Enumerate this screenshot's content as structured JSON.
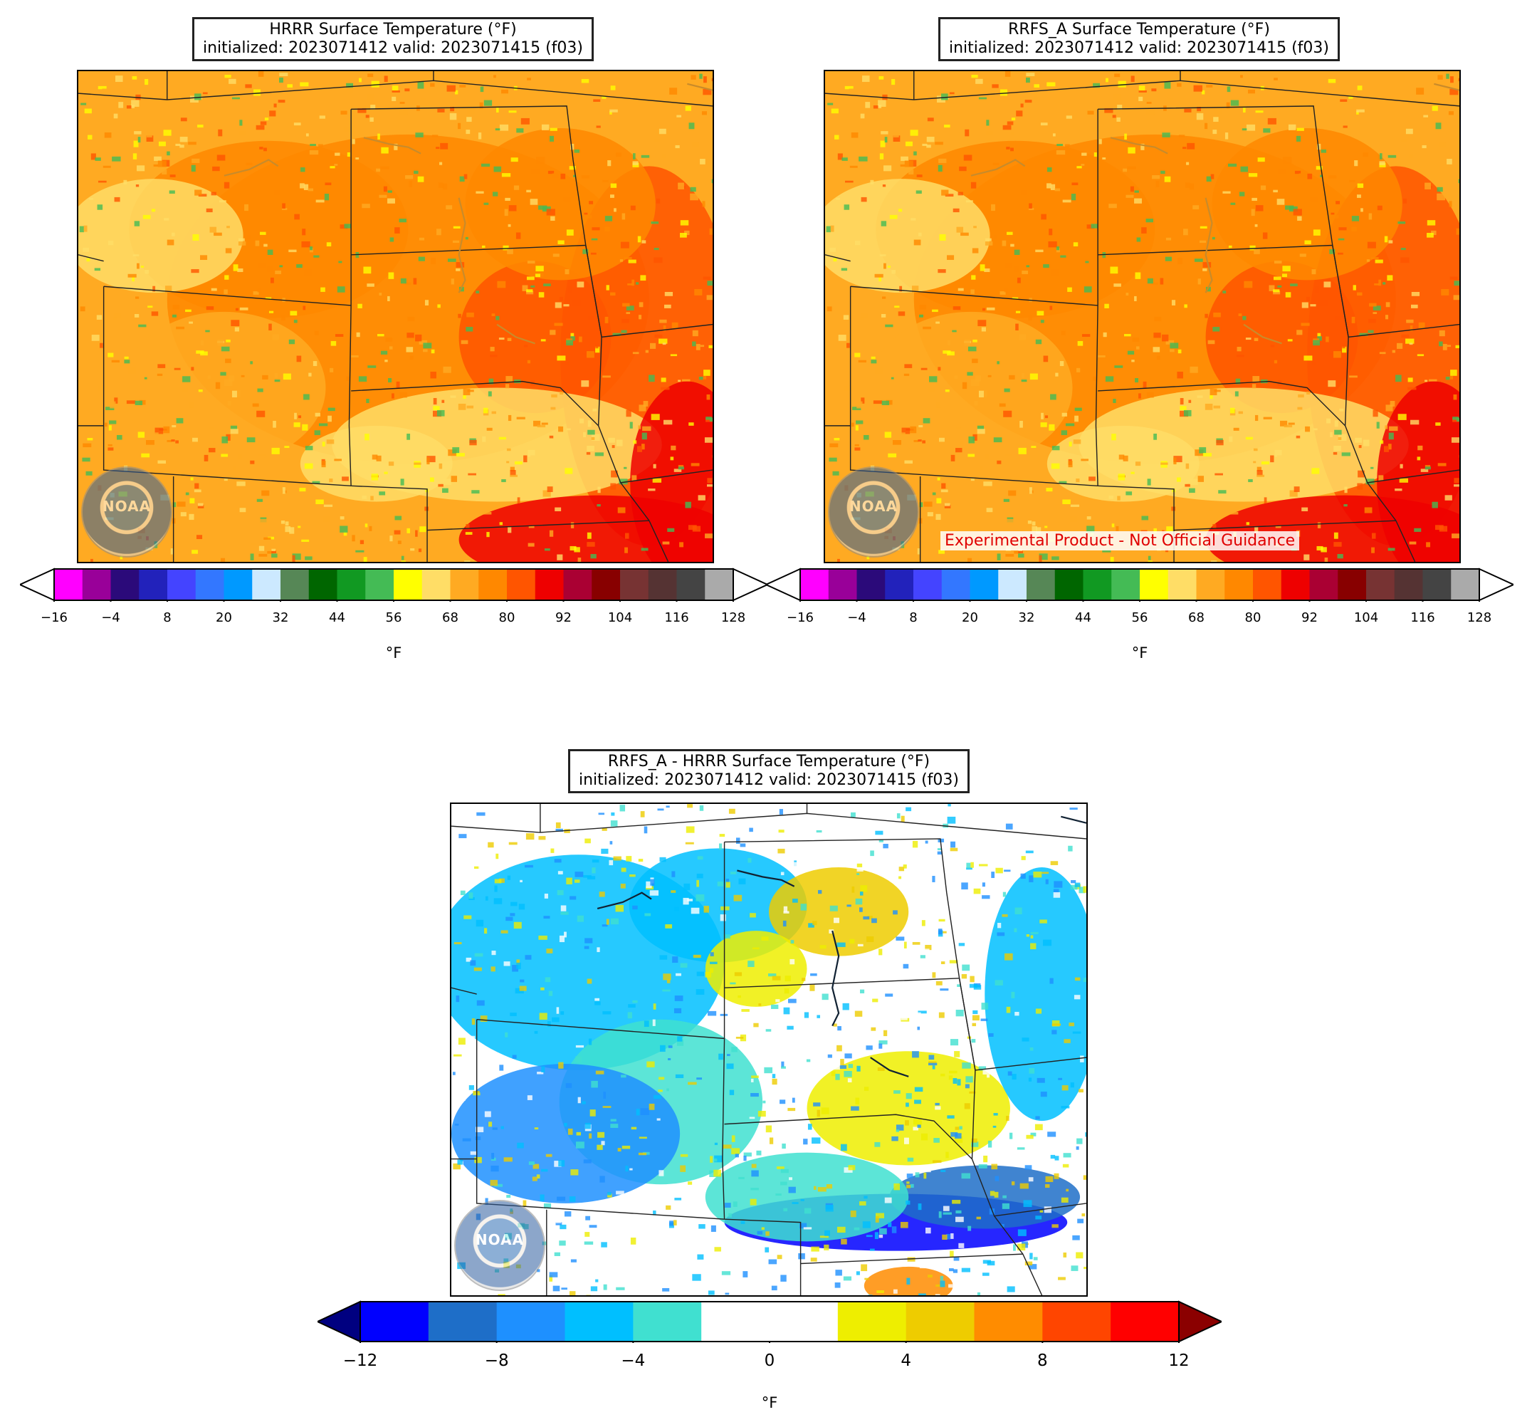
{
  "panels": {
    "hrrr": {
      "title_line1": "HRRR Surface Temperature (°F)",
      "title_line2": "initialized: 2023071412 valid: 2023071415 (f03)",
      "logo_text": "NOAA"
    },
    "rrfs": {
      "title_line1": "RRFS_A Surface Temperature (°F)",
      "title_line2": "initialized: 2023071412 valid: 2023071415 (f03)",
      "logo_text": "NOAA",
      "watermark": "Experimental Product - Not Official Guidance"
    },
    "diff": {
      "title_line1": "RRFS_A - HRRR Surface Temperature (°F)",
      "title_line2": "initialized: 2023071412 valid: 2023071415 (f03)",
      "logo_text": "NOAA"
    }
  },
  "temp_colorbar": {
    "unit_label": "°F",
    "ticks": [
      "−16",
      "−4",
      "8",
      "20",
      "32",
      "44",
      "56",
      "68",
      "80",
      "92",
      "104",
      "116",
      "128"
    ],
    "extend_low_color": "#ffffff",
    "extend_high_color": "#ffffff",
    "colors": [
      "#ff00ff",
      "#990099",
      "#2b0a7a",
      "#2222bb",
      "#4444ff",
      "#3377ff",
      "#0099ff",
      "#cce9ff",
      "#568756",
      "#006600",
      "#119922",
      "#44bb55",
      "#ffff00",
      "#ffdd66",
      "#ffaa22",
      "#ff8800",
      "#ff5500",
      "#ee0000",
      "#aa0033",
      "#880000",
      "#773333",
      "#553333",
      "#444444",
      "#aaaaaa"
    ]
  },
  "diff_colorbar": {
    "unit_label": "°F",
    "ticks": [
      "−12",
      "−8",
      "−4",
      "0",
      "4",
      "8",
      "12"
    ],
    "extend_low_color": "#000080",
    "extend_high_color": "#8b0000",
    "colors": [
      "#0000ff",
      "#1e6ec8",
      "#1e90ff",
      "#00bfff",
      "#40e0d0",
      "#ffffff",
      "#ffffff",
      "#eeee00",
      "#eecc00",
      "#ff8c00",
      "#ff4500",
      "#ff0000"
    ]
  }
}
